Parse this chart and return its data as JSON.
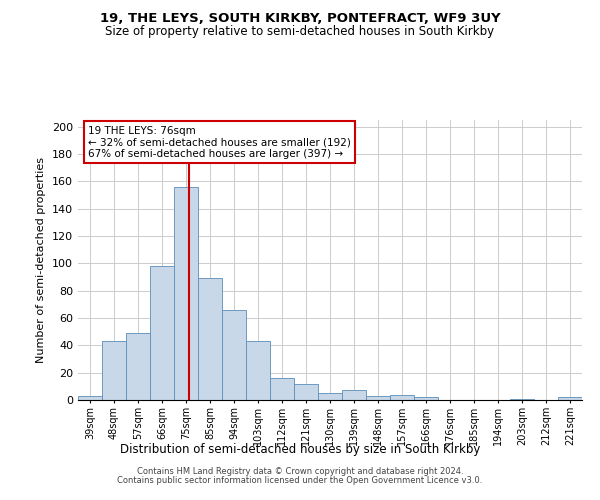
{
  "title1": "19, THE LEYS, SOUTH KIRKBY, PONTEFRACT, WF9 3UY",
  "title2": "Size of property relative to semi-detached houses in South Kirkby",
  "xlabel": "Distribution of semi-detached houses by size in South Kirkby",
  "ylabel": "Number of semi-detached properties",
  "footer1": "Contains HM Land Registry data © Crown copyright and database right 2024.",
  "footer2": "Contains public sector information licensed under the Open Government Licence v3.0.",
  "annotation_title": "19 THE LEYS: 76sqm",
  "annotation_line1": "← 32% of semi-detached houses are smaller (192)",
  "annotation_line2": "67% of semi-detached houses are larger (397) →",
  "property_size": 76,
  "bar_color": "#c8d8e8",
  "bar_edge_color": "#5b8db8",
  "vline_color": "#cc0000",
  "annotation_box_edge": "#cc0000",
  "annotation_box_face": "#ffffff",
  "grid_color": "#cccccc",
  "background_color": "#ffffff",
  "categories": [
    "39sqm",
    "48sqm",
    "57sqm",
    "66sqm",
    "75sqm",
    "85sqm",
    "94sqm",
    "103sqm",
    "112sqm",
    "121sqm",
    "130sqm",
    "139sqm",
    "148sqm",
    "157sqm",
    "166sqm",
    "176sqm",
    "185sqm",
    "194sqm",
    "203sqm",
    "212sqm",
    "221sqm"
  ],
  "values": [
    3,
    43,
    49,
    98,
    156,
    89,
    66,
    43,
    16,
    12,
    5,
    7,
    3,
    4,
    2,
    0,
    0,
    0,
    1,
    0,
    2
  ],
  "bin_edges": [
    34.5,
    43.5,
    52.5,
    61.5,
    70.5,
    79.5,
    88.5,
    97.5,
    106.5,
    115.5,
    124.5,
    133.5,
    142.5,
    151.5,
    160.5,
    169.5,
    178.5,
    187.5,
    196.5,
    205.5,
    214.5,
    223.5
  ],
  "ylim": [
    0,
    205
  ],
  "yticks": [
    0,
    20,
    40,
    60,
    80,
    100,
    120,
    140,
    160,
    180,
    200
  ]
}
